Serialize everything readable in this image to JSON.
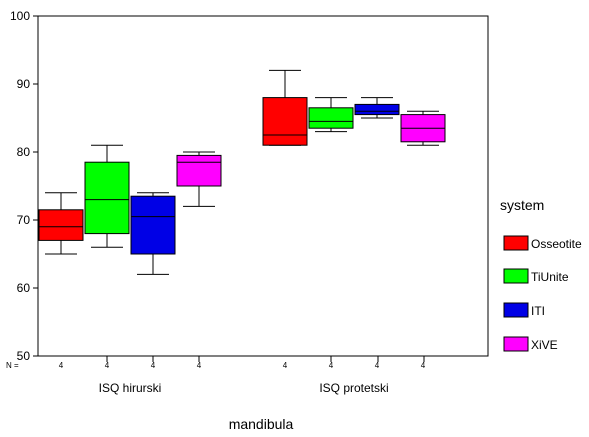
{
  "chart_data": {
    "type": "boxplot",
    "xlabel": "mandibula",
    "ylabel": "",
    "ylim": [
      50,
      100
    ],
    "yticks": [
      50,
      60,
      70,
      80,
      90,
      100
    ],
    "grid": false,
    "n_label": "N =",
    "legend": {
      "title": "system",
      "position": "right"
    },
    "colors": {
      "Osseotite": "#ff0000",
      "TiUnite": "#00ff00",
      "ITI": "#0000e6",
      "XiVE": "#ff00ff"
    },
    "categories": [
      "ISQ hirurski",
      "ISQ protetski"
    ],
    "series": [
      {
        "name": "Osseotite",
        "boxes": [
          {
            "n": "4",
            "whisker_low": 65,
            "q1": 67,
            "median": 69,
            "q3": 71.5,
            "whisker_high": 74
          },
          {
            "n": "4",
            "whisker_low": 81,
            "q1": 81,
            "median": 82.5,
            "q3": 88,
            "whisker_high": 92
          }
        ]
      },
      {
        "name": "TiUnite",
        "boxes": [
          {
            "n": "4",
            "whisker_low": 66,
            "q1": 68,
            "median": 73,
            "q3": 78.5,
            "whisker_high": 81
          },
          {
            "n": "4",
            "whisker_low": 83,
            "q1": 83.5,
            "median": 84.5,
            "q3": 86.5,
            "whisker_high": 88
          }
        ]
      },
      {
        "name": "ITI",
        "boxes": [
          {
            "n": "4",
            "whisker_low": 62,
            "q1": 65,
            "median": 70.5,
            "q3": 73.5,
            "whisker_high": 74
          },
          {
            "n": "4",
            "whisker_low": 85,
            "q1": 85.5,
            "median": 86,
            "q3": 87,
            "whisker_high": 88
          }
        ]
      },
      {
        "name": "XiVE",
        "boxes": [
          {
            "n": "4",
            "whisker_low": 72,
            "q1": 75,
            "median": 78.5,
            "q3": 79.5,
            "whisker_high": 80
          },
          {
            "n": "4",
            "whisker_low": 81,
            "q1": 81.5,
            "median": 83.5,
            "q3": 85.5,
            "whisker_high": 86
          }
        ]
      }
    ]
  }
}
